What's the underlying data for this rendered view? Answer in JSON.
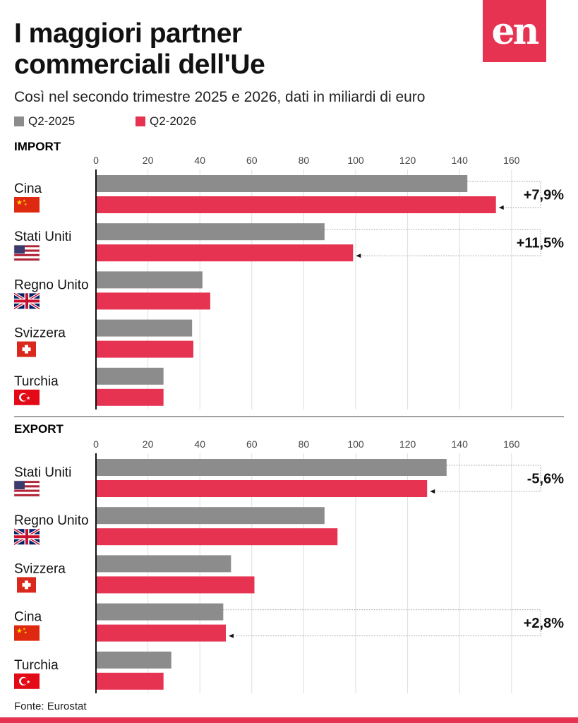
{
  "title_line1": "I maggiori partner",
  "title_line2": "commerciali dell'Ue",
  "logo_text": "en",
  "subtitle": "Così nel secondo trimestre 2025 e 2026, dati in miliardi di euro",
  "source": "Fonte: Eurostat",
  "colors": {
    "q2_2025": "#8c8c8c",
    "q2_2026": "#e63352",
    "brand": "#e63352"
  },
  "chart_data": [
    {
      "type": "bar",
      "orientation": "horizontal",
      "title": "IMPORT",
      "xlim": [
        0,
        160
      ],
      "ticks": [
        "0",
        "20",
        "40",
        "60",
        "80",
        "100",
        "120",
        "140",
        "160"
      ],
      "categories": [
        "Cina",
        "Stati Uniti",
        "Regno Unito",
        "Svizzera",
        "Turchia"
      ],
      "flags": [
        "china-flag",
        "usa-flag",
        "uk-flag",
        "switzerland-flag",
        "turkey-flag"
      ],
      "series": [
        {
          "name": "Q2-2025",
          "values": [
            143,
            88,
            41,
            37,
            26
          ]
        },
        {
          "name": "Q2-2026",
          "values": [
            154,
            99,
            44,
            37.5,
            26
          ]
        }
      ],
      "annotations": [
        {
          "category": "Cina",
          "text": "+7,9%"
        },
        {
          "category": "Stati Uniti",
          "text": "+11,5%"
        }
      ]
    },
    {
      "type": "bar",
      "orientation": "horizontal",
      "title": "EXPORT",
      "xlim": [
        0,
        160
      ],
      "ticks": [
        "0",
        "20",
        "40",
        "60",
        "80",
        "100",
        "120",
        "140",
        "160"
      ],
      "categories": [
        "Stati Uniti",
        "Regno Unito",
        "Svizzera",
        "Cina",
        "Turchia"
      ],
      "flags": [
        "usa-flag",
        "uk-flag",
        "switzerland-flag",
        "china-flag",
        "turkey-flag"
      ],
      "series": [
        {
          "name": "Q2-2025",
          "values": [
            135,
            88,
            52,
            49,
            29
          ]
        },
        {
          "name": "Q2-2026",
          "values": [
            127.5,
            93,
            61,
            50,
            26
          ]
        }
      ],
      "annotations": [
        {
          "category": "Stati Uniti",
          "text": "-5,6%"
        },
        {
          "category": "Cina",
          "text": "+2,8%"
        }
      ]
    }
  ]
}
